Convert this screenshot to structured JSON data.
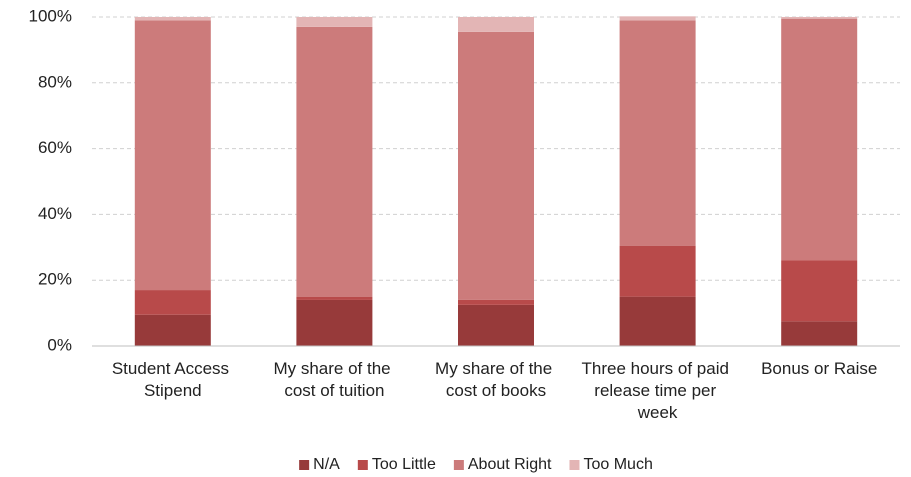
{
  "chart_data": {
    "type": "stacked_bar",
    "categories": [
      "Student Access Stipend",
      "My share of the cost of tuition",
      "My share of the cost of books",
      "Three hours of paid release time per week",
      "Bonus or Raise"
    ],
    "series": [
      {
        "name": "N/A",
        "color": "#973a3a",
        "values": [
          9.5,
          14,
          12.5,
          15,
          7.5
        ]
      },
      {
        "name": "Too Little",
        "color": "#b84a4a",
        "values": [
          7.5,
          1,
          1.5,
          15.5,
          18.5
        ]
      },
      {
        "name": "About Right",
        "color": "#cc7b7b",
        "values": [
          82,
          82,
          81.5,
          68.5,
          73.5
        ]
      },
      {
        "name": "Too Much",
        "color": "#e3b5b5",
        "values": [
          1,
          3,
          4.5,
          1.2,
          0.5
        ]
      }
    ],
    "ylim": [
      0,
      100
    ],
    "yticks": [
      {
        "value": 0,
        "label": "0%"
      },
      {
        "value": 20,
        "label": "20%"
      },
      {
        "value": 40,
        "label": "40%"
      },
      {
        "value": 60,
        "label": "60%"
      },
      {
        "value": 80,
        "label": "80%"
      },
      {
        "value": 100,
        "label": "100%"
      }
    ],
    "grid": true,
    "legend": "bottom"
  }
}
